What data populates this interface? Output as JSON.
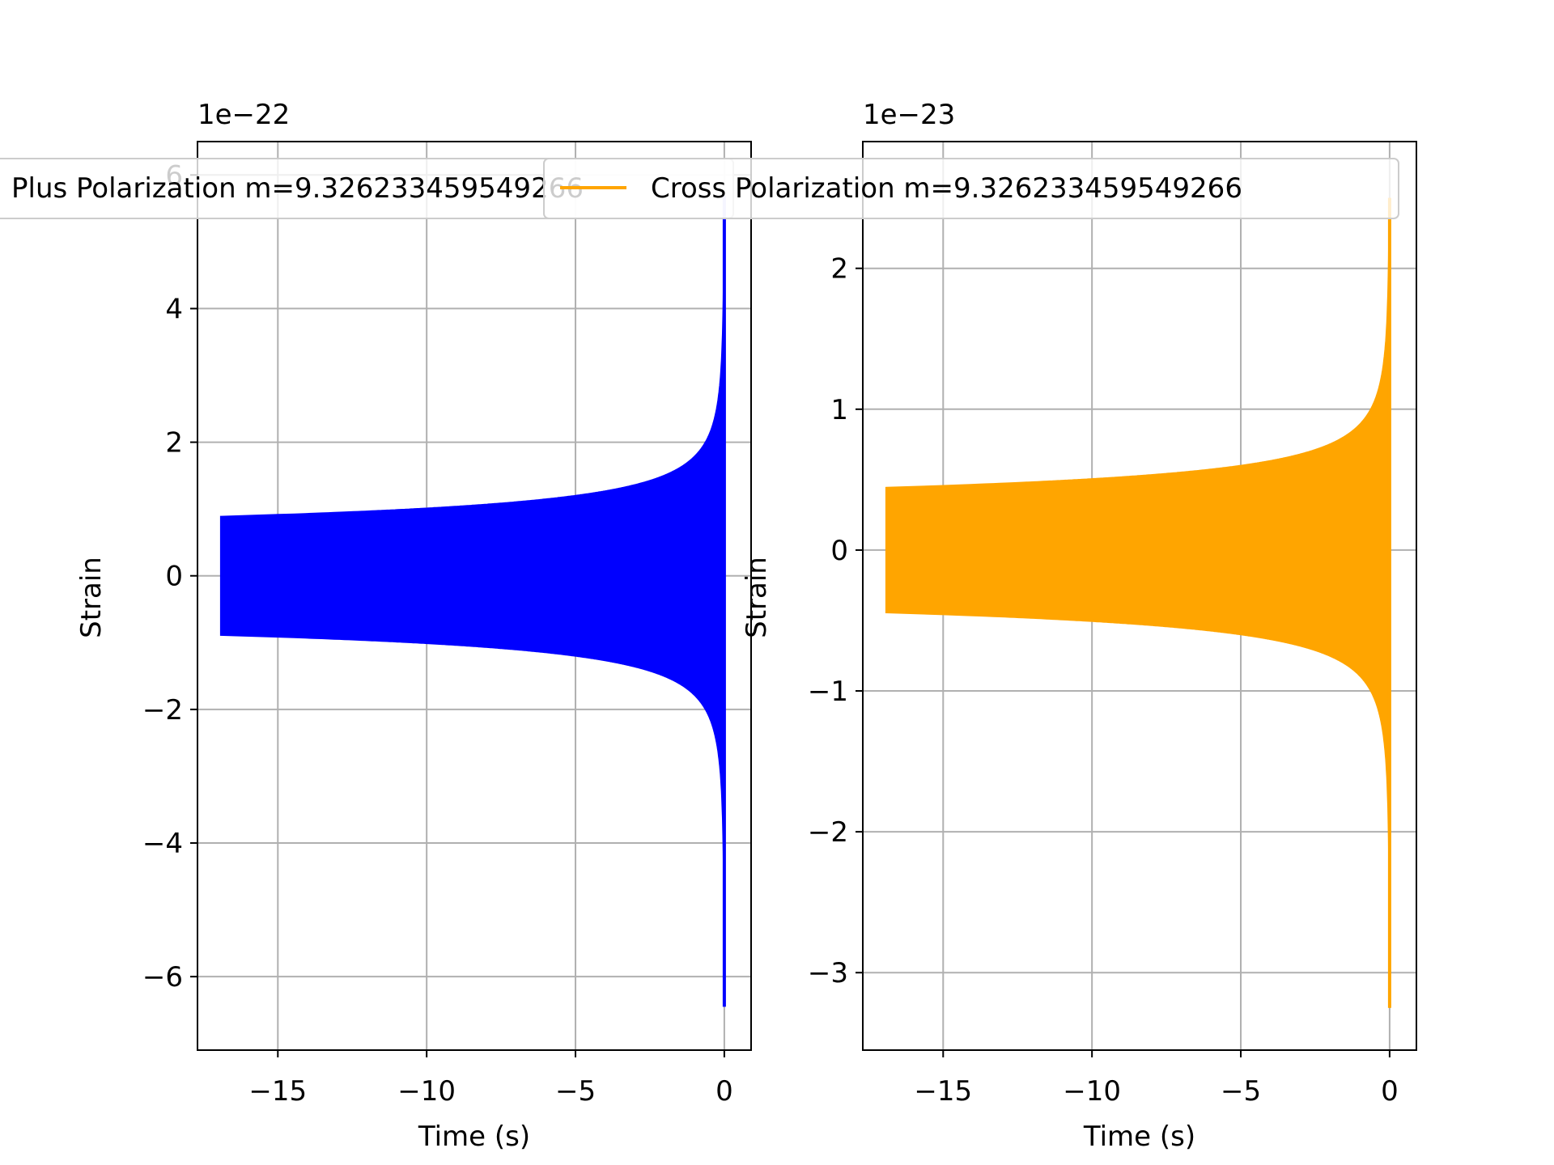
{
  "chart_data": [
    {
      "type": "line",
      "xlabel": "Time (s)",
      "ylabel": "Strain",
      "y_offset_text": "1e−22",
      "xlim": [
        -17.7,
        0.9
      ],
      "ylim": [
        -7.1,
        6.5
      ],
      "xticks": [
        -15,
        -10,
        -5,
        0
      ],
      "xtick_labels": [
        "−15",
        "−10",
        "−5",
        "0"
      ],
      "yticks": [
        -6,
        -4,
        -2,
        0,
        2,
        4,
        6
      ],
      "ytick_labels": [
        "−6",
        "−4",
        "−2",
        "0",
        "2",
        "4",
        "6"
      ],
      "grid": true,
      "legend_position": "top-left",
      "series": [
        {
          "name": "Plus Polarization m=9.326233459549266",
          "color": "#0000ff",
          "x_range": [
            -16.9,
            0
          ],
          "envelope_initial": 0.88,
          "envelope_peak_upper": 5.7,
          "envelope_peak_lower": -6.45
        }
      ]
    },
    {
      "type": "line",
      "xlabel": "Time (s)",
      "ylabel": "Strain",
      "y_offset_text": "1e−23",
      "xlim": [
        -17.7,
        0.9
      ],
      "ylim": [
        -3.55,
        2.9
      ],
      "xticks": [
        -15,
        -10,
        -5,
        0
      ],
      "xtick_labels": [
        "−15",
        "−10",
        "−5",
        "0"
      ],
      "yticks": [
        -3,
        -2,
        -1,
        0,
        1,
        2
      ],
      "ytick_labels": [
        "−3",
        "−2",
        "−1",
        "0",
        "1",
        "2"
      ],
      "grid": true,
      "legend_position": "top-right",
      "series": [
        {
          "name": "Cross Polarization m=9.326233459549266",
          "color": "#ffa500",
          "x_range": [
            -16.9,
            0
          ],
          "envelope_initial": 0.44,
          "envelope_peak_upper": 2.5,
          "envelope_peak_lower": -3.25
        }
      ]
    }
  ]
}
